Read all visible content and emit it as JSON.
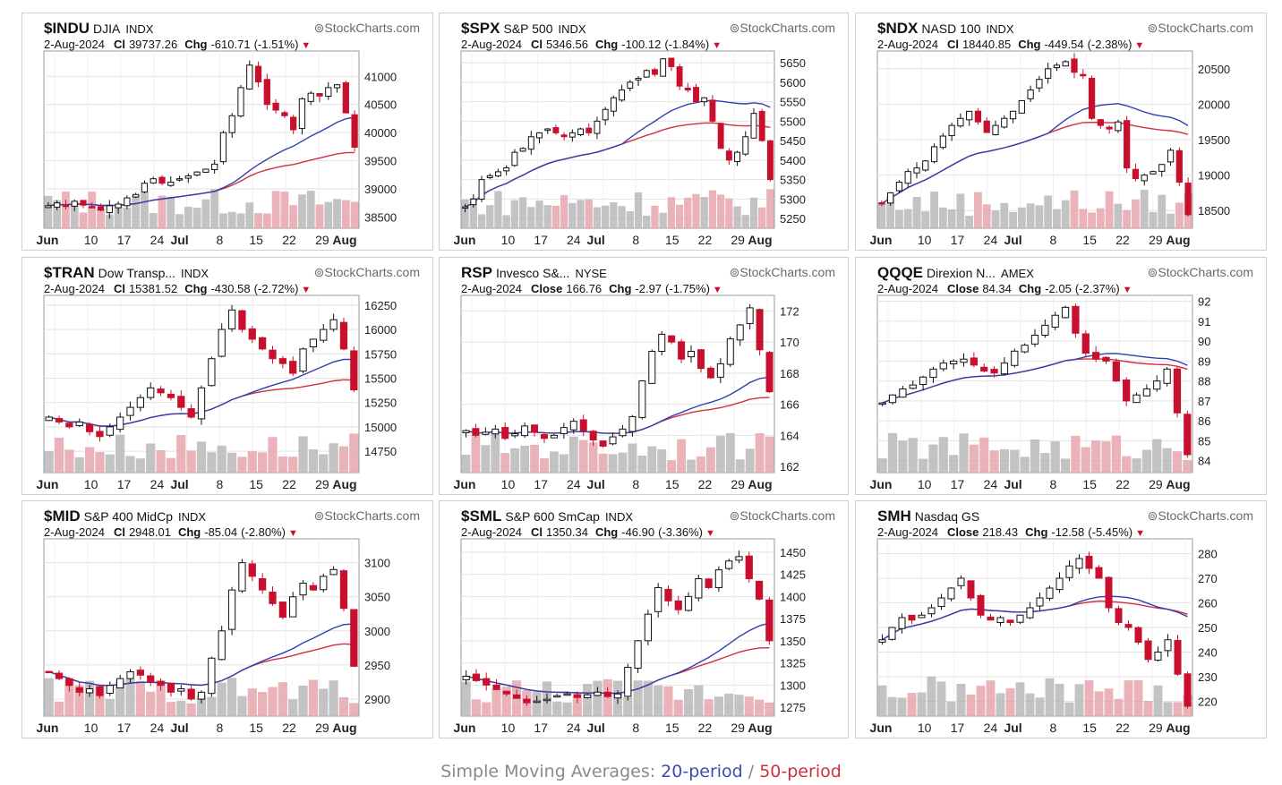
{
  "brand": "StockCharts.com",
  "date": "2-Aug-2024",
  "colors": {
    "up_body": "#ffffff",
    "down_body": "#c8102e",
    "candle_line": "#111111",
    "sma20": "#3040b0",
    "sma50": "#d03040",
    "vol_up": "#b9b9b9",
    "vol_down": "#e6a6ae",
    "grid": "#e2e2e2"
  },
  "footer": {
    "prefix": "Simple Moving Averages: ",
    "p20": "20-period",
    "sep": " / ",
    "p50": "50-period"
  },
  "chart_data": [
    {
      "type": "candlestick",
      "symbol": "$INDU",
      "name": "DJIA",
      "exchange": "INDX",
      "close_label": "Cl",
      "close": "39737.26",
      "change": "-610.71",
      "change_pct": "(-1.51%)",
      "x_ticks": [
        "Jun",
        "10",
        "17",
        "24",
        "Jul",
        "8",
        "15",
        "22",
        "29",
        "Aug"
      ],
      "y_ticks": [
        "41000",
        "40500",
        "40000",
        "39500",
        "39000",
        "38500"
      ],
      "ylim": [
        38300,
        41450
      ],
      "series": {
        "close": [
          38700,
          38750,
          38700,
          38780,
          38710,
          38680,
          38620,
          38700,
          38730,
          38840,
          38900,
          39100,
          39180,
          39100,
          39120,
          39180,
          39230,
          39300,
          39350,
          39440,
          40000,
          40300,
          40800,
          41200,
          40900,
          40500,
          40400,
          40300,
          40050,
          40600,
          40700,
          40650,
          40800,
          40850,
          40350,
          39740
        ]
      }
    },
    {
      "type": "candlestick",
      "symbol": "$SPX",
      "name": "S&P 500",
      "exchange": "INDX",
      "close_label": "Cl",
      "close": "5346.56",
      "change": "-100.12",
      "change_pct": "(-1.84%)",
      "x_ticks": [
        "Jun",
        "10",
        "17",
        "24",
        "Jul",
        "8",
        "15",
        "22",
        "29",
        "Aug"
      ],
      "y_ticks": [
        "5650",
        "5600",
        "5550",
        "5500",
        "5450",
        "5400",
        "5350",
        "5300",
        "5250"
      ],
      "ylim": [
        5225,
        5680
      ],
      "series": {
        "close": [
          5280,
          5300,
          5350,
          5360,
          5370,
          5380,
          5420,
          5430,
          5460,
          5470,
          5480,
          5470,
          5460,
          5470,
          5480,
          5470,
          5500,
          5530,
          5560,
          5580,
          5600,
          5610,
          5630,
          5620,
          5660,
          5640,
          5590,
          5580,
          5550,
          5560,
          5500,
          5430,
          5400,
          5420,
          5460,
          5520,
          5450,
          5350
        ]
      }
    },
    {
      "type": "candlestick",
      "symbol": "$NDX",
      "name": "NASD 100",
      "exchange": "INDX",
      "close_label": "Cl",
      "close": "18440.85",
      "change": "-449.54",
      "change_pct": "(-2.38%)",
      "x_ticks": [
        "Jun",
        "10",
        "17",
        "24",
        "Jul",
        "8",
        "15",
        "22",
        "29",
        "Aug"
      ],
      "y_ticks": [
        "20500",
        "20000",
        "19500",
        "19000",
        "18500"
      ],
      "ylim": [
        18250,
        20750
      ],
      "series": {
        "close": [
          18600,
          18750,
          18900,
          19050,
          19100,
          19200,
          19400,
          19550,
          19700,
          19800,
          19900,
          19750,
          19600,
          19700,
          19800,
          19900,
          20050,
          20200,
          20350,
          20500,
          20550,
          20600,
          20450,
          20400,
          19800,
          19700,
          19650,
          19750,
          19100,
          18950,
          19000,
          19050,
          19150,
          19350,
          18900,
          18440
        ]
      }
    },
    {
      "type": "candlestick",
      "symbol": "$TRAN",
      "name": "Dow Transp...",
      "exchange": "INDX",
      "close_label": "Cl",
      "close": "15381.52",
      "change": "-430.58",
      "change_pct": "(-2.72%)",
      "x_ticks": [
        "Jun",
        "10",
        "17",
        "24",
        "Jul",
        "8",
        "15",
        "22",
        "29",
        "Aug"
      ],
      "y_ticks": [
        "16250",
        "16000",
        "15750",
        "15500",
        "15250",
        "15000",
        "14750"
      ],
      "ylim": [
        14530,
        16350
      ],
      "series": {
        "close": [
          15100,
          15050,
          15000,
          15050,
          14950,
          14900,
          15000,
          15100,
          15200,
          15300,
          15400,
          15350,
          15300,
          15200,
          15100,
          15400,
          15700,
          16000,
          16200,
          16000,
          15900,
          15800,
          15700,
          15650,
          15550,
          15800,
          15900,
          16000,
          16100,
          15800,
          15380
        ]
      }
    },
    {
      "type": "candlestick",
      "symbol": "RSP",
      "name": "Invesco S&...",
      "exchange": "NYSE",
      "close_label": "Close",
      "close": "166.76",
      "change": "-2.97",
      "change_pct": "(-1.75%)",
      "x_ticks": [
        "Jun",
        "10",
        "17",
        "24",
        "Jul",
        "8",
        "15",
        "22",
        "29",
        "Aug"
      ],
      "y_ticks": [
        "172",
        "170",
        "168",
        "166",
        "164",
        "162"
      ],
      "ylim": [
        161.6,
        173.0
      ],
      "series": {
        "close": [
          164.3,
          164.0,
          164.2,
          164.4,
          163.8,
          164.1,
          164.6,
          164.2,
          163.8,
          164.0,
          164.5,
          164.9,
          164.3,
          163.7,
          163.3,
          163.9,
          164.4,
          165.2,
          167.5,
          169.4,
          170.5,
          170.0,
          168.9,
          169.4,
          168.3,
          167.7,
          168.6,
          170.2,
          171.1,
          172.2,
          169.5,
          166.8
        ]
      }
    },
    {
      "type": "candlestick",
      "symbol": "QQQE",
      "name": "Direxion N...",
      "exchange": "AMEX",
      "close_label": "Close",
      "close": "84.34",
      "change": "-2.05",
      "change_pct": "(-2.37%)",
      "x_ticks": [
        "Jun",
        "10",
        "17",
        "24",
        "Jul",
        "8",
        "15",
        "22",
        "29",
        "Aug"
      ],
      "y_ticks": [
        "92",
        "91",
        "90",
        "89",
        "88",
        "87",
        "86",
        "85",
        "84"
      ],
      "ylim": [
        83.4,
        92.3
      ],
      "series": {
        "close": [
          86.9,
          87.3,
          87.6,
          87.8,
          88.2,
          88.6,
          88.9,
          89.0,
          89.1,
          88.8,
          88.5,
          88.4,
          88.9,
          89.5,
          89.8,
          90.3,
          90.8,
          91.3,
          91.7,
          90.4,
          89.4,
          89.1,
          89.0,
          88.0,
          87.0,
          87.3,
          87.6,
          88.0,
          88.6,
          86.4,
          84.3
        ]
      }
    },
    {
      "type": "candlestick",
      "symbol": "$MID",
      "name": "S&P 400 MidCp",
      "exchange": "INDX",
      "close_label": "Cl",
      "close": "2948.01",
      "change": "-85.04",
      "change_pct": "(-2.80%)",
      "x_ticks": [
        "Jun",
        "10",
        "17",
        "24",
        "Jul",
        "8",
        "15",
        "22",
        "29",
        "Aug"
      ],
      "y_ticks": [
        "3100",
        "3050",
        "3000",
        "2950",
        "2900"
      ],
      "ylim": [
        2875,
        3135
      ],
      "series": {
        "close": [
          2940,
          2930,
          2920,
          2910,
          2915,
          2905,
          2920,
          2930,
          2940,
          2935,
          2925,
          2920,
          2910,
          2915,
          2900,
          2910,
          2960,
          3000,
          3060,
          3100,
          3080,
          3060,
          3040,
          3020,
          3050,
          3070,
          3060,
          3080,
          3090,
          3033,
          2948
        ]
      }
    },
    {
      "type": "candlestick",
      "symbol": "$SML",
      "name": "S&P 600 SmCap",
      "exchange": "INDX",
      "close_label": "Cl",
      "close": "1350.34",
      "change": "-46.90",
      "change_pct": "(-3.36%)",
      "x_ticks": [
        "Jun",
        "10",
        "17",
        "24",
        "Jul",
        "8",
        "15",
        "22",
        "29",
        "Aug"
      ],
      "y_ticks": [
        "1450",
        "1425",
        "1400",
        "1375",
        "1350",
        "1325",
        "1300",
        "1275"
      ],
      "ylim": [
        1265,
        1465
      ],
      "series": {
        "close": [
          1310,
          1305,
          1300,
          1295,
          1290,
          1285,
          1280,
          1282,
          1284,
          1288,
          1290,
          1286,
          1289,
          1292,
          1287,
          1290,
          1320,
          1350,
          1380,
          1410,
          1395,
          1385,
          1400,
          1420,
          1410,
          1430,
          1440,
          1445,
          1420,
          1397,
          1350
        ]
      }
    },
    {
      "type": "candlestick",
      "symbol": "SMH",
      "name": "Nasdaq GS",
      "exchange": "",
      "close_label": "Close",
      "close": "218.43",
      "change": "-12.58",
      "change_pct": "(-5.45%)",
      "x_ticks": [
        "Jun",
        "10",
        "17",
        "24",
        "Jul",
        "8",
        "15",
        "22",
        "29",
        "Aug"
      ],
      "y_ticks": [
        "280",
        "270",
        "260",
        "250",
        "240",
        "230",
        "220"
      ],
      "ylim": [
        214,
        286
      ],
      "series": {
        "close": [
          245,
          250,
          254,
          253,
          255,
          258,
          262,
          266,
          270,
          262,
          255,
          253,
          254,
          252,
          255,
          258,
          262,
          266,
          270,
          275,
          278,
          274,
          270,
          258,
          252,
          250,
          244,
          237,
          240,
          245,
          231,
          218
        ]
      }
    }
  ]
}
